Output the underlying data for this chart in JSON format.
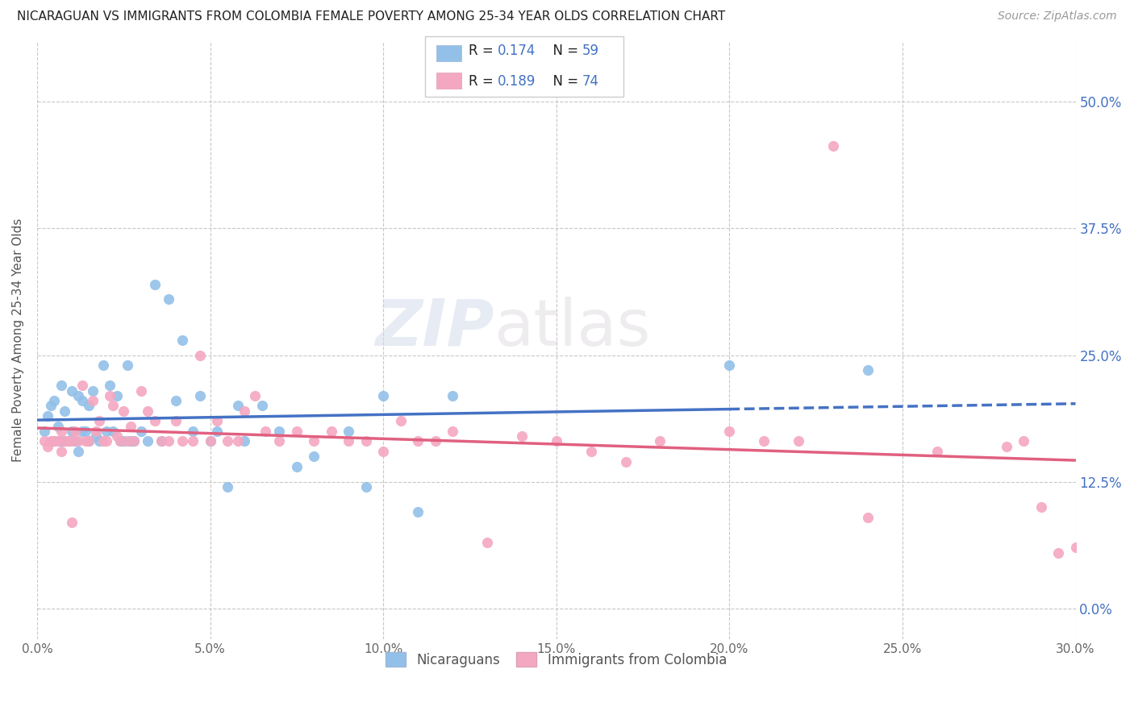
{
  "title": "NICARAGUAN VS IMMIGRANTS FROM COLOMBIA FEMALE POVERTY AMONG 25-34 YEAR OLDS CORRELATION CHART",
  "source": "Source: ZipAtlas.com",
  "ylabel": "Female Poverty Among 25-34 Year Olds",
  "xlim": [
    0.0,
    0.3
  ],
  "ylim": [
    -0.03,
    0.56
  ],
  "blue_color": "#92C0E8",
  "pink_color": "#F4A7C0",
  "blue_line_color": "#4472C4",
  "pink_line_color": "#E06080",
  "R_blue": 0.174,
  "N_blue": 59,
  "R_pink": 0.189,
  "N_pink": 74,
  "watermark_zip": "ZIP",
  "watermark_atlas": "atlas",
  "ytick_vals": [
    0.0,
    0.125,
    0.25,
    0.375,
    0.5
  ],
  "ytick_labels": [
    "0.0%",
    "12.5%",
    "25.0%",
    "37.5%",
    "50.0%"
  ],
  "xtick_vals": [
    0.0,
    0.05,
    0.1,
    0.15,
    0.2,
    0.25,
    0.3
  ],
  "xtick_labels": [
    "0.0%",
    "5.0%",
    "10.0%",
    "15.0%",
    "20.0%",
    "25.0%",
    "30.0%"
  ],
  "blue_x": [
    0.002,
    0.003,
    0.004,
    0.005,
    0.005,
    0.006,
    0.007,
    0.007,
    0.008,
    0.008,
    0.009,
    0.01,
    0.01,
    0.011,
    0.012,
    0.012,
    0.013,
    0.013,
    0.014,
    0.015,
    0.015,
    0.016,
    0.017,
    0.018,
    0.019,
    0.02,
    0.021,
    0.022,
    0.023,
    0.024,
    0.025,
    0.026,
    0.027,
    0.028,
    0.03,
    0.032,
    0.034,
    0.036,
    0.038,
    0.04,
    0.042,
    0.045,
    0.047,
    0.05,
    0.052,
    0.055,
    0.058,
    0.06,
    0.065,
    0.07,
    0.075,
    0.08,
    0.09,
    0.095,
    0.1,
    0.11,
    0.12,
    0.2,
    0.24
  ],
  "blue_y": [
    0.175,
    0.19,
    0.2,
    0.165,
    0.205,
    0.18,
    0.165,
    0.22,
    0.165,
    0.195,
    0.165,
    0.175,
    0.215,
    0.165,
    0.155,
    0.21,
    0.175,
    0.205,
    0.175,
    0.2,
    0.165,
    0.215,
    0.17,
    0.165,
    0.24,
    0.175,
    0.22,
    0.175,
    0.21,
    0.165,
    0.165,
    0.24,
    0.165,
    0.165,
    0.175,
    0.165,
    0.32,
    0.165,
    0.305,
    0.205,
    0.265,
    0.175,
    0.21,
    0.165,
    0.175,
    0.12,
    0.2,
    0.165,
    0.2,
    0.175,
    0.14,
    0.15,
    0.175,
    0.12,
    0.21,
    0.095,
    0.21,
    0.24,
    0.235
  ],
  "pink_x": [
    0.002,
    0.003,
    0.004,
    0.005,
    0.005,
    0.006,
    0.007,
    0.007,
    0.008,
    0.009,
    0.01,
    0.01,
    0.011,
    0.012,
    0.013,
    0.014,
    0.015,
    0.016,
    0.017,
    0.018,
    0.019,
    0.02,
    0.021,
    0.022,
    0.023,
    0.024,
    0.025,
    0.026,
    0.027,
    0.028,
    0.03,
    0.032,
    0.034,
    0.036,
    0.038,
    0.04,
    0.042,
    0.045,
    0.047,
    0.05,
    0.052,
    0.055,
    0.058,
    0.06,
    0.063,
    0.066,
    0.07,
    0.075,
    0.08,
    0.085,
    0.09,
    0.095,
    0.1,
    0.105,
    0.11,
    0.115,
    0.12,
    0.13,
    0.14,
    0.15,
    0.16,
    0.17,
    0.18,
    0.2,
    0.21,
    0.22,
    0.23,
    0.24,
    0.26,
    0.28,
    0.285,
    0.29,
    0.295,
    0.3
  ],
  "pink_y": [
    0.165,
    0.16,
    0.165,
    0.165,
    0.165,
    0.165,
    0.155,
    0.175,
    0.165,
    0.165,
    0.085,
    0.165,
    0.175,
    0.165,
    0.22,
    0.165,
    0.165,
    0.205,
    0.175,
    0.185,
    0.165,
    0.165,
    0.21,
    0.2,
    0.17,
    0.165,
    0.195,
    0.165,
    0.18,
    0.165,
    0.215,
    0.195,
    0.185,
    0.165,
    0.165,
    0.185,
    0.165,
    0.165,
    0.25,
    0.165,
    0.185,
    0.165,
    0.165,
    0.195,
    0.21,
    0.175,
    0.165,
    0.175,
    0.165,
    0.175,
    0.165,
    0.165,
    0.155,
    0.185,
    0.165,
    0.165,
    0.175,
    0.065,
    0.17,
    0.165,
    0.155,
    0.145,
    0.165,
    0.175,
    0.165,
    0.165,
    0.456,
    0.09,
    0.155,
    0.16,
    0.165,
    0.1,
    0.055,
    0.06
  ],
  "blue_solid_xlim": [
    0.0,
    0.2
  ],
  "blue_dash_xlim": [
    0.2,
    0.3
  ]
}
